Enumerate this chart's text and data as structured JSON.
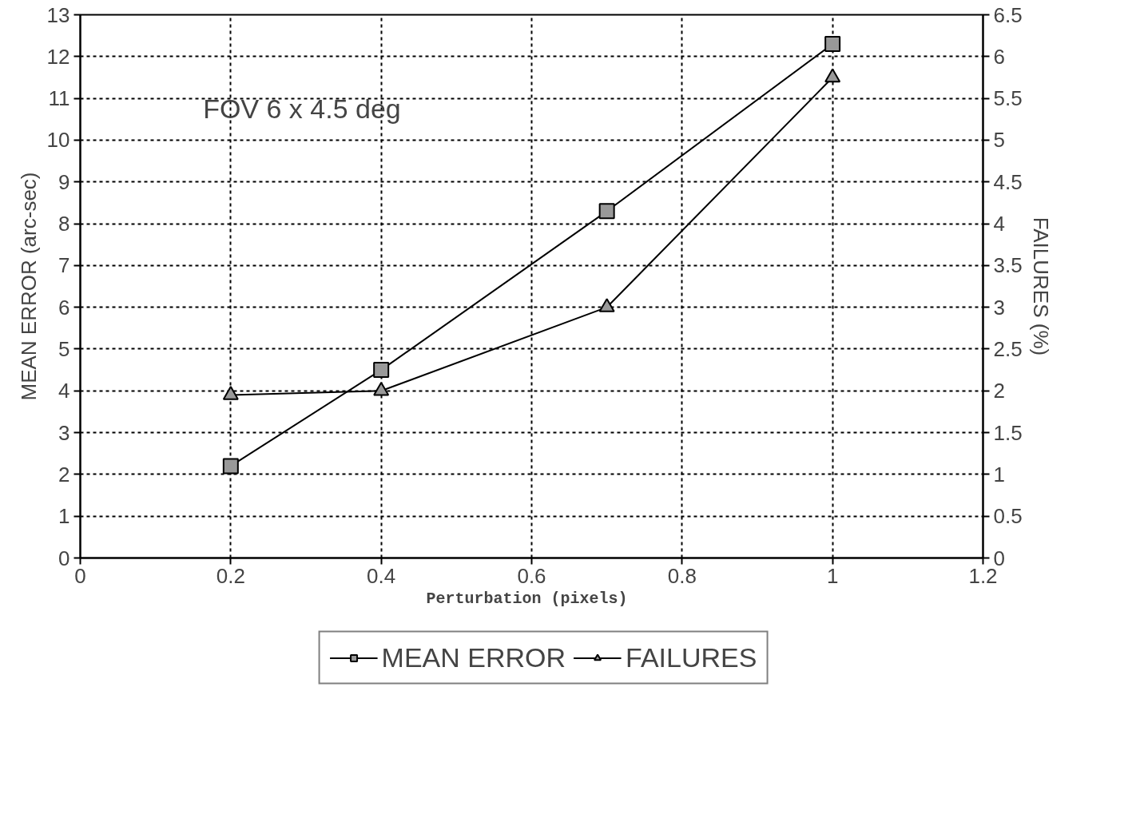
{
  "chart_data": {
    "type": "line",
    "xlabel": "Perturbation  (pixels)",
    "ylabel": "MEAN ERROR (arc-sec)",
    "y2label": "FAILURES (%)",
    "annotations": [
      "FOV 6 x 4.5 deg"
    ],
    "x": [
      0.2,
      0.4,
      0.7,
      1.0
    ],
    "series": [
      {
        "name": "MEAN ERROR",
        "color": "#000000",
        "marker": "square",
        "values": [
          2.2,
          4.5,
          8.3,
          12.3
        ]
      },
      {
        "name": "FAILURES",
        "color": "#000000",
        "marker": "triangle",
        "axis": "y2",
        "values": [
          1.95,
          2.0,
          3.0,
          5.75
        ]
      }
    ],
    "xlim": [
      0,
      1.2
    ],
    "xticks": [
      0,
      0.2,
      0.4,
      0.6,
      0.8,
      1,
      1.2
    ],
    "ylim": [
      0,
      13
    ],
    "yticks": [
      0,
      1,
      2,
      3,
      4,
      5,
      6,
      7,
      8,
      9,
      10,
      11,
      12,
      13
    ],
    "y2lim": [
      0,
      6.5
    ],
    "y2ticks": [
      0,
      0.5,
      1,
      1.5,
      2,
      2.5,
      3,
      3.5,
      4,
      4.5,
      5,
      5.5,
      6,
      6.5
    ],
    "grid": true,
    "legend": "bottom",
    "line_style": "solid"
  }
}
